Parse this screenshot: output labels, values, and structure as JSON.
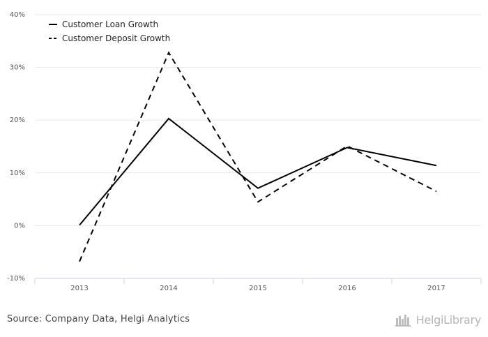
{
  "chart_data": {
    "type": "line",
    "categories": [
      "2013",
      "2014",
      "2015",
      "2016",
      "2017"
    ],
    "series": [
      {
        "name": "Customer Loan Growth",
        "values": [
          0.1,
          20.3,
          7.1,
          14.8,
          11.4
        ],
        "dash": "solid",
        "color": "#000000"
      },
      {
        "name": "Customer Deposit Growth",
        "values": [
          -6.8,
          32.8,
          4.5,
          15.1,
          6.5
        ],
        "dash": "dashed",
        "color": "#000000"
      }
    ],
    "yticks": [
      "40%",
      "30%",
      "20%",
      "10%",
      "0%",
      "-10%"
    ],
    "ylim": [
      -10,
      40
    ],
    "grid": true,
    "legend": "top-left"
  },
  "footer": {
    "source": "Source: Company Data, Helgi Analytics",
    "logo_text": "HelgiLibrary",
    "logo_icon": "library-icon"
  }
}
